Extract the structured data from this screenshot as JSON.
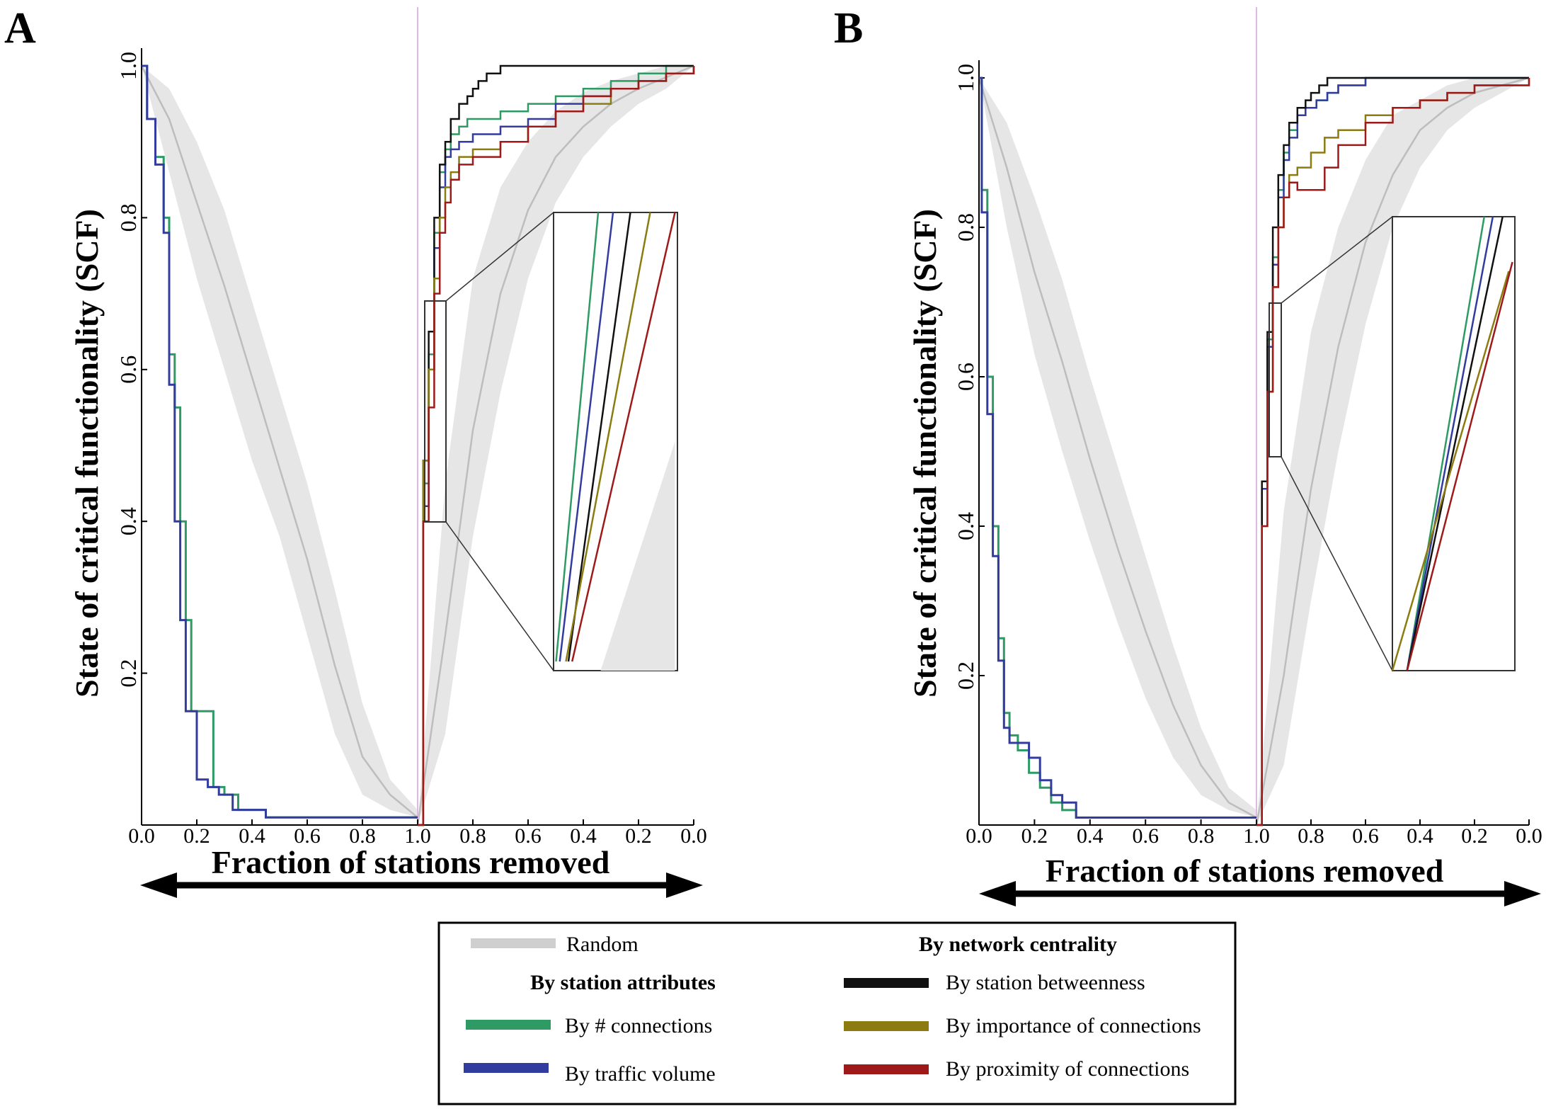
{
  "chart_data": [
    {
      "type": "line",
      "panel": "A",
      "ylabel": "State of critical functionality (SCF)",
      "xlabel": "Fraction of stations removed",
      "yticks": [
        "0.2",
        "0.4",
        "0.6",
        "0.8",
        "1.0"
      ],
      "xticks_removal": [
        "0.0",
        "0.2",
        "0.4",
        "0.6",
        "0.8",
        "1.0"
      ],
      "xticks_recovery": [
        "0.8",
        "0.6",
        "0.4",
        "0.2",
        "0.0"
      ],
      "ylim": [
        0,
        1
      ],
      "random_band": {
        "removal": {
          "x": [
            0,
            0.1,
            0.2,
            0.3,
            0.4,
            0.5,
            0.6,
            0.7,
            0.8,
            0.9,
            1.0
          ],
          "lower": [
            1.0,
            0.86,
            0.72,
            0.6,
            0.48,
            0.38,
            0.25,
            0.12,
            0.04,
            0.02,
            0.01
          ],
          "mid": [
            1.0,
            0.93,
            0.82,
            0.71,
            0.59,
            0.47,
            0.35,
            0.21,
            0.09,
            0.04,
            0.01
          ],
          "upper": [
            1.0,
            0.97,
            0.9,
            0.81,
            0.69,
            0.57,
            0.45,
            0.31,
            0.16,
            0.06,
            0.02
          ]
        },
        "recovery": {
          "x": [
            1.0,
            0.9,
            0.8,
            0.7,
            0.6,
            0.5,
            0.4,
            0.3,
            0.2,
            0.1,
            0.0
          ],
          "lower": [
            0.0,
            0.12,
            0.38,
            0.57,
            0.72,
            0.82,
            0.88,
            0.92,
            0.95,
            0.97,
            1.0
          ],
          "mid": [
            0.0,
            0.25,
            0.52,
            0.7,
            0.81,
            0.88,
            0.92,
            0.95,
            0.97,
            0.985,
            1.0
          ],
          "upper": [
            0.0,
            0.45,
            0.72,
            0.84,
            0.9,
            0.94,
            0.965,
            0.98,
            0.99,
            1.0,
            1.0
          ]
        }
      },
      "series": [
        {
          "name": "By # connections",
          "color": "#2e9a64",
          "removal": {
            "x": [
              0,
              0.02,
              0.05,
              0.08,
              0.1,
              0.12,
              0.14,
              0.16,
              0.18,
              0.22,
              0.26,
              0.3,
              0.35,
              0.45,
              0.6,
              0.8,
              1.0
            ],
            "y": [
              1.0,
              0.93,
              0.88,
              0.8,
              0.62,
              0.55,
              0.4,
              0.27,
              0.15,
              0.15,
              0.05,
              0.04,
              0.02,
              0.01,
              0.01,
              0.01,
              0.01
            ]
          },
          "recovery": {
            "x": [
              1.0,
              0.98,
              0.96,
              0.94,
              0.92,
              0.9,
              0.88,
              0.85,
              0.82,
              0.78,
              0.7,
              0.6,
              0.5,
              0.4,
              0.3,
              0.2,
              0.1,
              0.0
            ],
            "y": [
              0.0,
              0.45,
              0.62,
              0.78,
              0.86,
              0.89,
              0.91,
              0.92,
              0.93,
              0.93,
              0.94,
              0.95,
              0.96,
              0.97,
              0.98,
              0.99,
              1.0,
              1.0
            ]
          }
        },
        {
          "name": "By traffic volume",
          "color": "#313c9e",
          "removal": {
            "x": [
              0,
              0.02,
              0.05,
              0.08,
              0.1,
              0.12,
              0.14,
              0.16,
              0.18,
              0.2,
              0.24,
              0.28,
              0.33,
              0.45,
              0.6,
              0.8,
              1.0
            ],
            "y": [
              1.0,
              0.93,
              0.87,
              0.78,
              0.58,
              0.4,
              0.27,
              0.15,
              0.15,
              0.06,
              0.05,
              0.04,
              0.02,
              0.01,
              0.01,
              0.01,
              0.01
            ]
          },
          "recovery": {
            "x": [
              1.0,
              0.98,
              0.96,
              0.94,
              0.92,
              0.9,
              0.88,
              0.85,
              0.8,
              0.7,
              0.6,
              0.5,
              0.4,
              0.3,
              0.2,
              0.1,
              0.0
            ],
            "y": [
              0.0,
              0.42,
              0.6,
              0.76,
              0.84,
              0.88,
              0.89,
              0.9,
              0.91,
              0.92,
              0.93,
              0.95,
              0.96,
              0.97,
              0.98,
              0.99,
              1.0
            ]
          }
        },
        {
          "name": "By station betweenness",
          "color": "#111111",
          "recovery": {
            "x": [
              1.0,
              0.98,
              0.96,
              0.94,
              0.92,
              0.9,
              0.88,
              0.85,
              0.82,
              0.8,
              0.78,
              0.75,
              0.72,
              0.7,
              0.66,
              0.6,
              0.5,
              0.4,
              0.3,
              0.2,
              0.1,
              0.0
            ],
            "y": [
              0.0,
              0.48,
              0.65,
              0.8,
              0.87,
              0.9,
              0.93,
              0.95,
              0.96,
              0.97,
              0.98,
              0.99,
              0.99,
              1.0,
              1.0,
              1.0,
              1.0,
              1.0,
              1.0,
              1.0,
              1.0,
              1.0
            ]
          }
        },
        {
          "name": "By importance of connections",
          "color": "#8c7b10",
          "recovery": {
            "x": [
              1.0,
              0.98,
              0.96,
              0.94,
              0.92,
              0.9,
              0.88,
              0.85,
              0.8,
              0.7,
              0.6,
              0.5,
              0.4,
              0.3,
              0.2,
              0.1,
              0.0
            ],
            "y": [
              0.0,
              0.48,
              0.6,
              0.72,
              0.8,
              0.84,
              0.86,
              0.88,
              0.89,
              0.9,
              0.92,
              0.94,
              0.95,
              0.97,
              0.98,
              0.99,
              1.0
            ]
          }
        },
        {
          "name": "By proximity of connections",
          "color": "#9e1a1a",
          "recovery": {
            "x": [
              1.0,
              0.98,
              0.96,
              0.94,
              0.92,
              0.9,
              0.88,
              0.85,
              0.8,
              0.7,
              0.6,
              0.5,
              0.4,
              0.3,
              0.2,
              0.1,
              0.0
            ],
            "y": [
              0.0,
              0.4,
              0.55,
              0.7,
              0.78,
              0.82,
              0.85,
              0.87,
              0.88,
              0.9,
              0.92,
              0.94,
              0.96,
              0.97,
              0.98,
              0.99,
              1.0
            ]
          }
        }
      ]
    },
    {
      "type": "line",
      "panel": "B",
      "ylabel": "State of critical functionality (SCF)",
      "xlabel": "Fraction of stations removed",
      "yticks": [
        "0.2",
        "0.4",
        "0.6",
        "0.8",
        "1.0"
      ],
      "xticks_removal": [
        "0.0",
        "0.2",
        "0.4",
        "0.6",
        "0.8",
        "1.0"
      ],
      "xticks_recovery": [
        "0.8",
        "0.6",
        "0.4",
        "0.2",
        "0.0"
      ],
      "ylim": [
        0,
        1
      ],
      "random_band": {
        "removal": {
          "x": [
            0,
            0.1,
            0.2,
            0.3,
            0.4,
            0.5,
            0.6,
            0.7,
            0.8,
            0.9,
            1.0
          ],
          "lower": [
            1.0,
            0.8,
            0.63,
            0.5,
            0.38,
            0.27,
            0.17,
            0.09,
            0.04,
            0.02,
            0.01
          ],
          "mid": [
            1.0,
            0.88,
            0.74,
            0.62,
            0.49,
            0.37,
            0.26,
            0.16,
            0.08,
            0.03,
            0.01
          ],
          "upper": [
            1.0,
            0.94,
            0.84,
            0.73,
            0.6,
            0.48,
            0.36,
            0.24,
            0.13,
            0.05,
            0.02
          ]
        },
        "recovery": {
          "x": [
            1.0,
            0.9,
            0.8,
            0.7,
            0.6,
            0.5,
            0.4,
            0.3,
            0.2,
            0.1,
            0.0
          ],
          "lower": [
            0.0,
            0.08,
            0.3,
            0.5,
            0.67,
            0.8,
            0.88,
            0.93,
            0.96,
            0.98,
            1.0
          ],
          "mid": [
            0.0,
            0.2,
            0.45,
            0.64,
            0.78,
            0.87,
            0.93,
            0.96,
            0.98,
            0.99,
            1.0
          ],
          "upper": [
            0.0,
            0.42,
            0.66,
            0.8,
            0.89,
            0.95,
            0.97,
            0.99,
            1.0,
            1.0,
            1.0
          ]
        }
      },
      "series": [
        {
          "name": "By # connections",
          "color": "#2e9a64",
          "removal": {
            "x": [
              0,
              0.01,
              0.03,
              0.05,
              0.07,
              0.09,
              0.11,
              0.14,
              0.18,
              0.22,
              0.26,
              0.3,
              0.35,
              0.5,
              0.7,
              0.9,
              1.0
            ],
            "y": [
              1.0,
              0.85,
              0.6,
              0.4,
              0.25,
              0.15,
              0.12,
              0.1,
              0.07,
              0.05,
              0.03,
              0.02,
              0.01,
              0.01,
              0.01,
              0.01,
              0.01
            ]
          },
          "recovery": {
            "x": [
              1.0,
              0.98,
              0.96,
              0.94,
              0.92,
              0.9,
              0.88,
              0.85,
              0.82,
              0.78,
              0.74,
              0.7,
              0.6,
              0.5,
              0.4,
              0.3,
              0.2,
              0.1,
              0.0
            ],
            "y": [
              0.0,
              0.45,
              0.65,
              0.76,
              0.85,
              0.9,
              0.93,
              0.95,
              0.96,
              0.97,
              0.98,
              0.99,
              1.0,
              1.0,
              1.0,
              1.0,
              1.0,
              1.0,
              1.0
            ]
          }
        },
        {
          "name": "By traffic volume",
          "color": "#313c9e",
          "removal": {
            "x": [
              0,
              0.01,
              0.03,
              0.05,
              0.07,
              0.09,
              0.11,
              0.14,
              0.18,
              0.22,
              0.26,
              0.3,
              0.35,
              0.5,
              0.7,
              0.9,
              1.0
            ],
            "y": [
              1.0,
              0.82,
              0.55,
              0.36,
              0.22,
              0.13,
              0.11,
              0.11,
              0.09,
              0.06,
              0.04,
              0.03,
              0.01,
              0.01,
              0.01,
              0.01,
              0.01
            ]
          },
          "recovery": {
            "x": [
              1.0,
              0.98,
              0.96,
              0.94,
              0.92,
              0.9,
              0.88,
              0.85,
              0.82,
              0.78,
              0.74,
              0.7,
              0.6,
              0.5,
              0.4,
              0.3,
              0.2,
              0.1,
              0.0
            ],
            "y": [
              0.0,
              0.45,
              0.64,
              0.75,
              0.84,
              0.89,
              0.92,
              0.95,
              0.96,
              0.97,
              0.98,
              0.99,
              1.0,
              1.0,
              1.0,
              1.0,
              1.0,
              1.0,
              1.0
            ]
          }
        },
        {
          "name": "By station betweenness",
          "color": "#111111",
          "recovery": {
            "x": [
              1.0,
              0.98,
              0.96,
              0.94,
              0.92,
              0.9,
              0.88,
              0.85,
              0.82,
              0.8,
              0.77,
              0.74,
              0.7,
              0.6,
              0.5,
              0.4,
              0.3,
              0.2,
              0.1,
              0.0
            ],
            "y": [
              0.0,
              0.46,
              0.66,
              0.8,
              0.87,
              0.91,
              0.94,
              0.96,
              0.97,
              0.98,
              0.99,
              1.0,
              1.0,
              1.0,
              1.0,
              1.0,
              1.0,
              1.0,
              1.0,
              1.0
            ]
          }
        },
        {
          "name": "By importance of connections",
          "color": "#8c7b10",
          "recovery": {
            "x": [
              1.0,
              0.98,
              0.96,
              0.94,
              0.92,
              0.9,
              0.88,
              0.85,
              0.8,
              0.75,
              0.7,
              0.6,
              0.5,
              0.4,
              0.3,
              0.2,
              0.1,
              0.0
            ],
            "y": [
              0.0,
              0.4,
              0.58,
              0.72,
              0.8,
              0.84,
              0.87,
              0.88,
              0.9,
              0.92,
              0.93,
              0.95,
              0.96,
              0.97,
              0.98,
              0.99,
              0.99,
              1.0
            ]
          }
        },
        {
          "name": "By proximity of connections",
          "color": "#9e1a1a",
          "recovery": {
            "x": [
              1.0,
              0.98,
              0.96,
              0.94,
              0.92,
              0.9,
              0.88,
              0.85,
              0.8,
              0.75,
              0.7,
              0.6,
              0.5,
              0.4,
              0.3,
              0.2,
              0.1,
              0.0
            ],
            "y": [
              0.0,
              0.4,
              0.58,
              0.72,
              0.8,
              0.84,
              0.86,
              0.85,
              0.85,
              0.88,
              0.91,
              0.94,
              0.96,
              0.97,
              0.98,
              0.99,
              0.99,
              1.0
            ]
          }
        }
      ]
    }
  ],
  "legend": {
    "random_label": "Random",
    "random_color": "#cfcfcf",
    "attributes_heading": "By station attributes",
    "centrality_heading": "By network centrality",
    "items": [
      {
        "label": "By # connections",
        "color": "#2e9a64"
      },
      {
        "label": "By traffic volume",
        "color": "#313c9e"
      },
      {
        "label": "By station betweenness",
        "color": "#111111"
      },
      {
        "label": "By importance of connections",
        "color": "#8c7b10"
      },
      {
        "label": "By proximity of connections",
        "color": "#9e1a1a"
      }
    ]
  }
}
